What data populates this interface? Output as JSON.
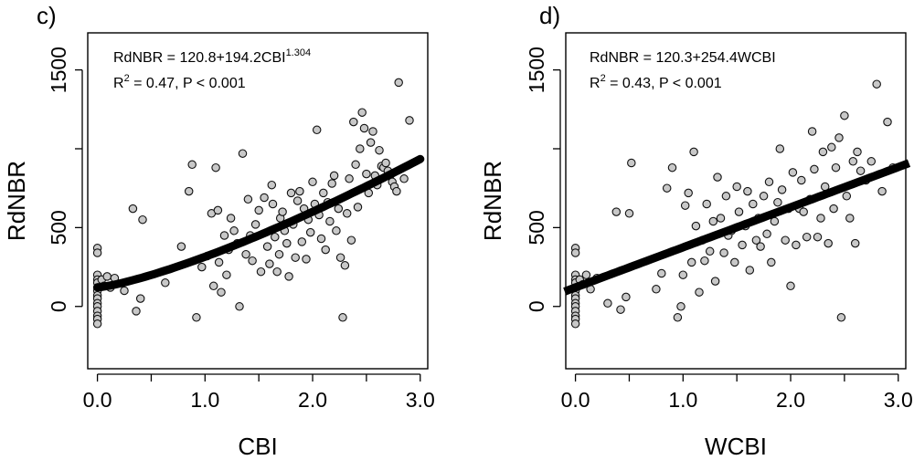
{
  "chart_data": [
    {
      "type": "scatter",
      "panel_label": "c)",
      "xlabel": "CBI",
      "ylabel": "RdNBR",
      "xlim": [
        -0.09,
        3.07
      ],
      "ylim": [
        -395,
        1735
      ],
      "xticks": [
        "0.0",
        "",
        "1.0",
        "",
        "2.0",
        "",
        "3.0"
      ],
      "xtick_values": [
        0,
        0.5,
        1,
        1.5,
        2,
        2.5,
        3
      ],
      "yticks": [
        "0",
        "500",
        "1500"
      ],
      "ytick_values": [
        0,
        500,
        1500
      ],
      "minor_yticks": [
        1000
      ],
      "grid": false,
      "equation": {
        "pre": "RdNBR = 120.8+194.2CBI",
        "sup": "1.304"
      },
      "stats": {
        "r": "R",
        "sup": "2",
        "rest": " = 0.47,  P < 0.001"
      },
      "fit": {
        "kind": "power",
        "intercept": 120.8,
        "coef": 194.2,
        "exponent": 1.304,
        "x_from": 0,
        "x_to": 3
      },
      "points": [
        [
          0,
          370
        ],
        [
          0,
          340
        ],
        [
          0,
          200
        ],
        [
          0,
          170
        ],
        [
          0,
          150
        ],
        [
          0,
          120
        ],
        [
          0,
          100
        ],
        [
          0,
          70
        ],
        [
          0,
          50
        ],
        [
          0,
          20
        ],
        [
          0,
          0
        ],
        [
          0,
          -30
        ],
        [
          0,
          -60
        ],
        [
          0,
          -80
        ],
        [
          0,
          -110
        ],
        [
          0.04,
          170
        ],
        [
          0.06,
          130
        ],
        [
          0.09,
          190
        ],
        [
          0.12,
          120
        ],
        [
          0.16,
          180
        ],
        [
          0.25,
          100
        ],
        [
          0.33,
          620
        ],
        [
          0.36,
          -30
        ],
        [
          0.4,
          50
        ],
        [
          0.42,
          550
        ],
        [
          0.63,
          150
        ],
        [
          0.78,
          380
        ],
        [
          0.85,
          730
        ],
        [
          0.88,
          900
        ],
        [
          0.92,
          -70
        ],
        [
          0.97,
          250
        ],
        [
          1.02,
          320
        ],
        [
          1.06,
          590
        ],
        [
          1.08,
          130
        ],
        [
          1.1,
          880
        ],
        [
          1.12,
          610
        ],
        [
          1.13,
          280
        ],
        [
          1.15,
          90
        ],
        [
          1.18,
          450
        ],
        [
          1.2,
          200
        ],
        [
          1.22,
          360
        ],
        [
          1.24,
          560
        ],
        [
          1.27,
          480
        ],
        [
          1.3,
          400
        ],
        [
          1.32,
          0
        ],
        [
          1.35,
          970
        ],
        [
          1.38,
          330
        ],
        [
          1.4,
          680
        ],
        [
          1.42,
          450
        ],
        [
          1.44,
          290
        ],
        [
          1.47,
          520
        ],
        [
          1.5,
          610
        ],
        [
          1.52,
          220
        ],
        [
          1.55,
          690
        ],
        [
          1.58,
          380
        ],
        [
          1.6,
          270
        ],
        [
          1.62,
          770
        ],
        [
          1.63,
          650
        ],
        [
          1.65,
          440
        ],
        [
          1.67,
          220
        ],
        [
          1.69,
          330
        ],
        [
          1.7,
          560
        ],
        [
          1.72,
          600
        ],
        [
          1.74,
          480
        ],
        [
          1.76,
          400
        ],
        [
          1.78,
          190
        ],
        [
          1.8,
          720
        ],
        [
          1.82,
          520
        ],
        [
          1.84,
          310
        ],
        [
          1.86,
          670
        ],
        [
          1.88,
          730
        ],
        [
          1.9,
          410
        ],
        [
          1.92,
          620
        ],
        [
          1.94,
          300
        ],
        [
          1.96,
          550
        ],
        [
          1.98,
          470
        ],
        [
          2,
          790
        ],
        [
          2.02,
          650
        ],
        [
          2.04,
          1120
        ],
        [
          2.06,
          580
        ],
        [
          2.08,
          430
        ],
        [
          2.1,
          720
        ],
        [
          2.12,
          360
        ],
        [
          2.14,
          660
        ],
        [
          2.16,
          540
        ],
        [
          2.18,
          780
        ],
        [
          2.2,
          830
        ],
        [
          2.22,
          480
        ],
        [
          2.24,
          620
        ],
        [
          2.26,
          310
        ],
        [
          2.28,
          -70
        ],
        [
          2.3,
          260
        ],
        [
          2.32,
          590
        ],
        [
          2.34,
          810
        ],
        [
          2.36,
          420
        ],
        [
          2.38,
          1170
        ],
        [
          2.4,
          900
        ],
        [
          2.42,
          630
        ],
        [
          2.44,
          1000
        ],
        [
          2.46,
          1230
        ],
        [
          2.48,
          1130
        ],
        [
          2.5,
          840
        ],
        [
          2.52,
          720
        ],
        [
          2.54,
          1040
        ],
        [
          2.56,
          1110
        ],
        [
          2.58,
          830
        ],
        [
          2.6,
          770
        ],
        [
          2.62,
          990
        ],
        [
          2.64,
          890
        ],
        [
          2.66,
          880
        ],
        [
          2.68,
          910
        ],
        [
          2.7,
          860
        ],
        [
          2.72,
          830
        ],
        [
          2.74,
          790
        ],
        [
          2.76,
          760
        ],
        [
          2.78,
          730
        ],
        [
          2.8,
          1420
        ],
        [
          2.85,
          810
        ],
        [
          2.9,
          1180
        ]
      ]
    },
    {
      "type": "scatter",
      "panel_label": "d)",
      "xlabel": "WCBI",
      "ylabel": "RdNBR",
      "xlim": [
        -0.09,
        3.07
      ],
      "ylim": [
        -395,
        1735
      ],
      "xticks": [
        "0.0",
        "",
        "1.0",
        "",
        "2.0",
        "",
        "3.0"
      ],
      "xtick_values": [
        0,
        0.5,
        1,
        1.5,
        2,
        2.5,
        3
      ],
      "yticks": [
        "0",
        "500",
        "1500"
      ],
      "ytick_values": [
        0,
        500,
        1500
      ],
      "minor_yticks": [
        1000
      ],
      "grid": false,
      "equation": {
        "pre": "RdNBR = 120.3+254.4WCBI",
        "sup": ""
      },
      "stats": {
        "r": "R",
        "sup": "2",
        "rest": " = 0.43,  P < 0.001"
      },
      "fit": {
        "kind": "linear",
        "intercept": 120.3,
        "coef": 254.4,
        "exponent": 1,
        "x_from": -0.1,
        "x_to": 3.1
      },
      "points": [
        [
          0,
          370
        ],
        [
          0,
          340
        ],
        [
          0,
          200
        ],
        [
          0,
          170
        ],
        [
          0,
          150
        ],
        [
          0,
          120
        ],
        [
          0,
          100
        ],
        [
          0,
          70
        ],
        [
          0,
          50
        ],
        [
          0,
          20
        ],
        [
          0,
          0
        ],
        [
          0,
          -30
        ],
        [
          0,
          -60
        ],
        [
          0,
          -80
        ],
        [
          0,
          -110
        ],
        [
          0.04,
          170
        ],
        [
          0.07,
          140
        ],
        [
          0.1,
          200
        ],
        [
          0.14,
          110
        ],
        [
          0.2,
          180
        ],
        [
          0.3,
          20
        ],
        [
          0.38,
          600
        ],
        [
          0.42,
          -20
        ],
        [
          0.47,
          60
        ],
        [
          0.5,
          590
        ],
        [
          0.52,
          910
        ],
        [
          0.75,
          110
        ],
        [
          0.8,
          210
        ],
        [
          0.85,
          750
        ],
        [
          0.9,
          880
        ],
        [
          0.95,
          -70
        ],
        [
          0.98,
          0
        ],
        [
          1.0,
          200
        ],
        [
          1.02,
          640
        ],
        [
          1.05,
          720
        ],
        [
          1.08,
          280
        ],
        [
          1.1,
          980
        ],
        [
          1.12,
          510
        ],
        [
          1.15,
          90
        ],
        [
          1.18,
          420
        ],
        [
          1.2,
          290
        ],
        [
          1.22,
          650
        ],
        [
          1.25,
          350
        ],
        [
          1.28,
          540
        ],
        [
          1.3,
          160
        ],
        [
          1.32,
          820
        ],
        [
          1.35,
          560
        ],
        [
          1.38,
          340
        ],
        [
          1.4,
          700
        ],
        [
          1.42,
          450
        ],
        [
          1.45,
          480
        ],
        [
          1.48,
          280
        ],
        [
          1.5,
          760
        ],
        [
          1.52,
          600
        ],
        [
          1.55,
          390
        ],
        [
          1.58,
          510
        ],
        [
          1.6,
          730
        ],
        [
          1.62,
          230
        ],
        [
          1.65,
          650
        ],
        [
          1.68,
          420
        ],
        [
          1.7,
          560
        ],
        [
          1.72,
          380
        ],
        [
          1.75,
          700
        ],
        [
          1.78,
          460
        ],
        [
          1.8,
          790
        ],
        [
          1.82,
          280
        ],
        [
          1.85,
          540
        ],
        [
          1.88,
          660
        ],
        [
          1.9,
          1000
        ],
        [
          1.92,
          740
        ],
        [
          1.95,
          420
        ],
        [
          1.98,
          620
        ],
        [
          2.0,
          130
        ],
        [
          2.02,
          850
        ],
        [
          2.05,
          390
        ],
        [
          2.08,
          620
        ],
        [
          2.1,
          800
        ],
        [
          2.12,
          600
        ],
        [
          2.15,
          440
        ],
        [
          2.18,
          680
        ],
        [
          2.2,
          1110
        ],
        [
          2.22,
          870
        ],
        [
          2.25,
          440
        ],
        [
          2.28,
          560
        ],
        [
          2.3,
          980
        ],
        [
          2.32,
          760
        ],
        [
          2.35,
          400
        ],
        [
          2.38,
          1010
        ],
        [
          2.4,
          620
        ],
        [
          2.42,
          880
        ],
        [
          2.45,
          1070
        ],
        [
          2.47,
          -70
        ],
        [
          2.5,
          1210
        ],
        [
          2.52,
          700
        ],
        [
          2.55,
          560
        ],
        [
          2.58,
          920
        ],
        [
          2.6,
          400
        ],
        [
          2.62,
          980
        ],
        [
          2.65,
          860
        ],
        [
          2.7,
          800
        ],
        [
          2.75,
          920
        ],
        [
          2.8,
          1410
        ],
        [
          2.85,
          730
        ],
        [
          2.9,
          1170
        ],
        [
          2.95,
          880
        ]
      ]
    }
  ]
}
